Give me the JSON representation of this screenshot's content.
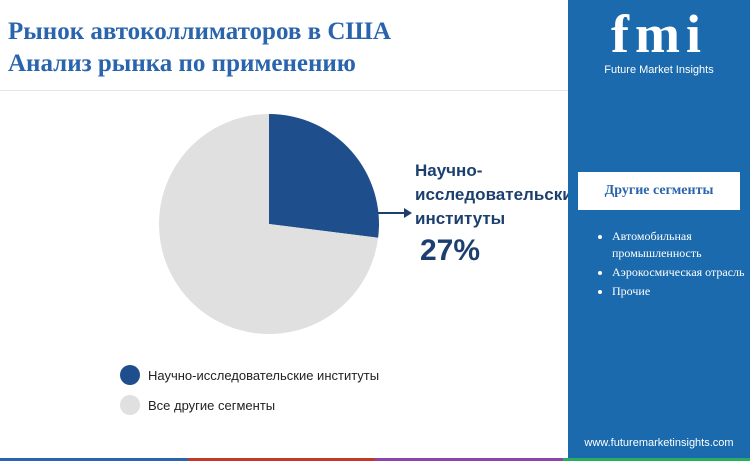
{
  "title": {
    "line1": "Рынок автоколлиматоров в США",
    "line2": "Анализ рынка по применению"
  },
  "chart_data": {
    "type": "pie",
    "slices": [
      {
        "label": "Научно-исследовательские институты",
        "value": 27,
        "color": "#1f4e8c"
      },
      {
        "label": "Все другие сегменты",
        "value": 73,
        "color": "#e0e0e0"
      }
    ]
  },
  "callout": {
    "label": "Научно-исследовательские институты",
    "value": "27%"
  },
  "legend": [
    {
      "label": "Научно-исследовательские институты",
      "color": "#1f4e8c"
    },
    {
      "label": "Все другие сегменты",
      "color": "#e0e0e0"
    }
  ],
  "panel": {
    "brand": "fmi",
    "tagline": "Future Market Insights",
    "heading": "Другие сегменты",
    "items": [
      "Автомобильная промышленность",
      "Аэрокосмическая отрасль",
      "Прочие"
    ],
    "website": "www.futuremarketinsights.com",
    "bg_color": "#1a6aad"
  },
  "footer_colors": [
    "#2a64ad",
    "#c0392b",
    "#8e44ad",
    "#27ae60"
  ]
}
